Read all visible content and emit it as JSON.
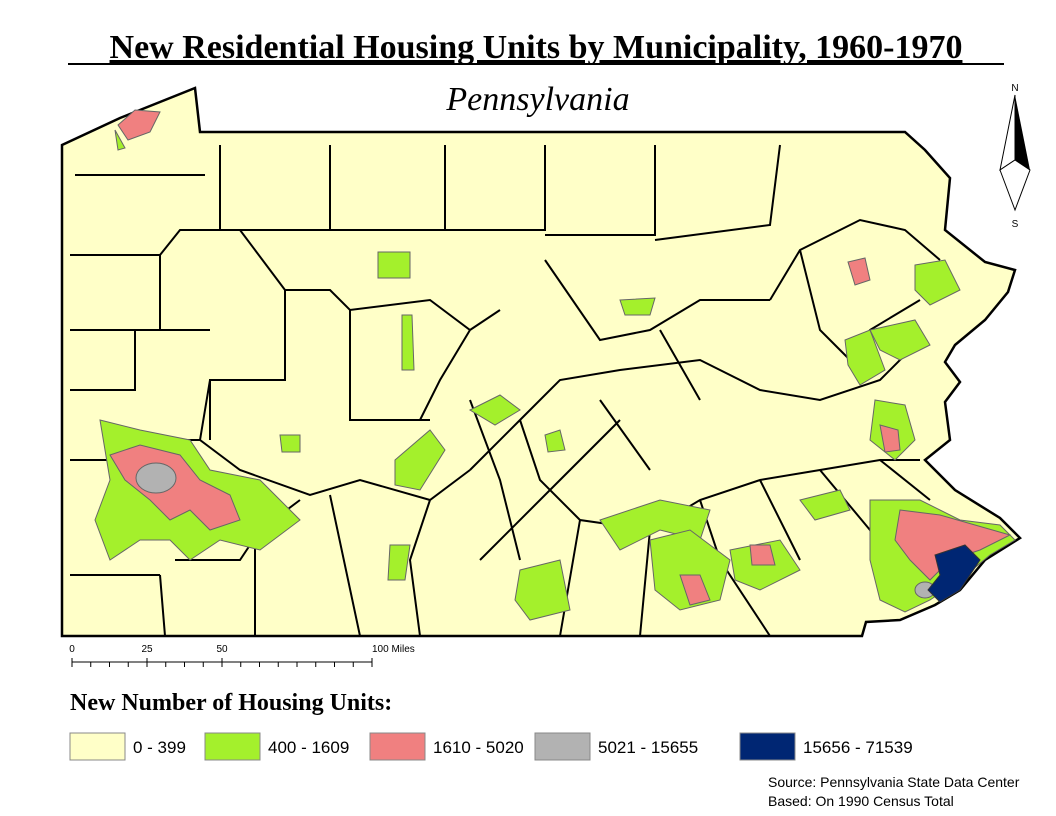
{
  "title": "New Residential Housing Units by Municipality, 1960-1970",
  "subtitle": "Pennsylvania",
  "north_arrow": {
    "north": "N",
    "south": "S"
  },
  "scale_bar": {
    "ticks": [
      0,
      25,
      50,
      {
        "value": 100,
        "label": "100 Miles"
      }
    ]
  },
  "legend": {
    "title": "New Number of Housing Units:",
    "items": [
      {
        "label": "0 - 399",
        "color": "#ffffc8"
      },
      {
        "label": "400 - 1609",
        "color": "#a4f02c"
      },
      {
        "label": "1610 - 5020",
        "color": "#f08080"
      },
      {
        "label": "5021 - 15655",
        "color": "#b2b2b2"
      },
      {
        "label": "15656 - 71539",
        "color": "#002673"
      }
    ]
  },
  "source": [
    "Source: Pennsylvania State Data Center",
    "Based: On 1990 Census Total"
  ]
}
